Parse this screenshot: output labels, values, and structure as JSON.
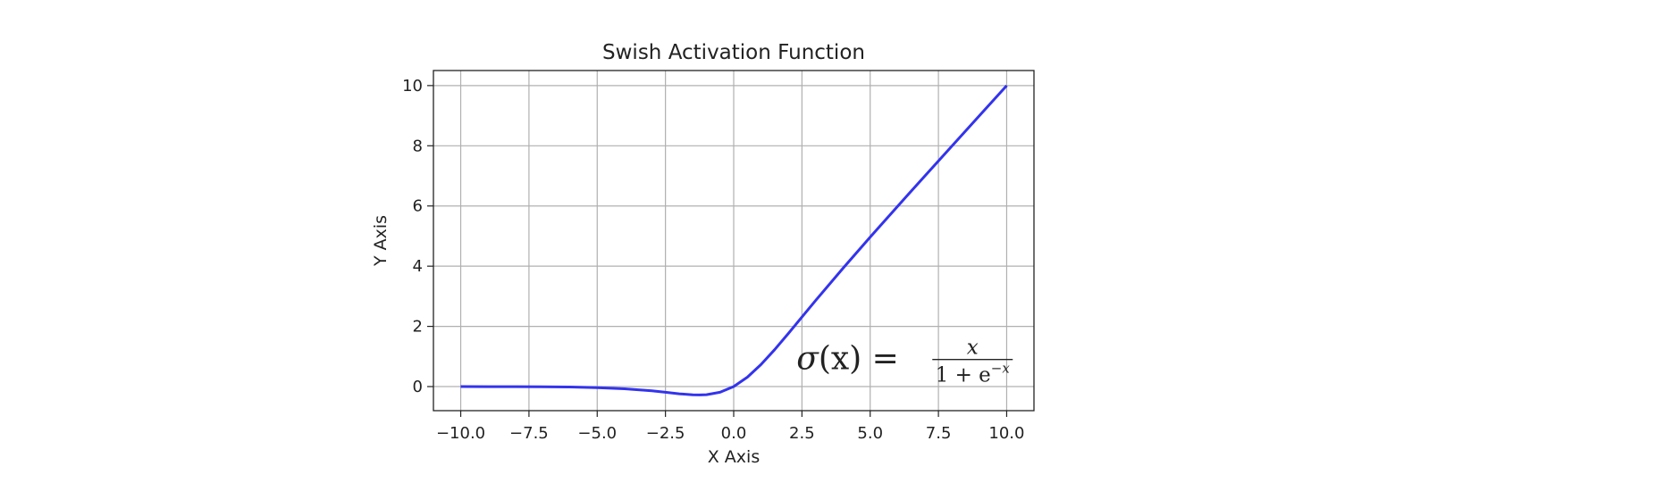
{
  "chart_data": {
    "type": "line",
    "title": "Swish Activation Function",
    "xlabel": "X Axis",
    "ylabel": "Y Axis",
    "xlim": [
      -11.0,
      11.0
    ],
    "ylim": [
      -0.8,
      10.5
    ],
    "xticks": [
      -10.0,
      -7.5,
      -5.0,
      -2.5,
      0.0,
      2.5,
      5.0,
      7.5,
      10.0
    ],
    "xtick_labels": [
      "−10.0",
      "−7.5",
      "−5.0",
      "−2.5",
      "0.0",
      "2.5",
      "5.0",
      "7.5",
      "10.0"
    ],
    "yticks": [
      0,
      2,
      4,
      6,
      8,
      10
    ],
    "ytick_labels": [
      "0",
      "2",
      "4",
      "6",
      "8",
      "10"
    ],
    "grid": true,
    "line_color": "#3333ee",
    "series": [
      {
        "x": [
          -10,
          -9,
          -8,
          -7,
          -6,
          -5,
          -4,
          -3,
          -2.5,
          -2,
          -1.5,
          -1.25,
          -1,
          -0.5,
          0,
          0.5,
          1,
          1.5,
          2,
          2.5,
          3,
          4,
          5,
          6,
          7,
          8,
          9,
          10
        ],
        "values": [
          -0.0005,
          -0.0011,
          -0.0027,
          -0.0064,
          -0.0148,
          -0.0335,
          -0.0719,
          -0.1423,
          -0.1887,
          -0.2384,
          -0.2736,
          -0.2784,
          -0.2689,
          -0.1888,
          0.0,
          0.3112,
          0.7311,
          1.2264,
          1.7616,
          2.3113,
          2.8577,
          3.9281,
          4.9665,
          5.9852,
          6.9936,
          7.9973,
          8.9989,
          9.9995
        ]
      }
    ],
    "annotations": [
      {
        "sigma": "σ",
        "lhs_rest": "(x) =",
        "numerator": "x",
        "denominator": "1 + e",
        "exponent": "−x",
        "x": 2.3,
        "y": 0.9
      }
    ]
  }
}
